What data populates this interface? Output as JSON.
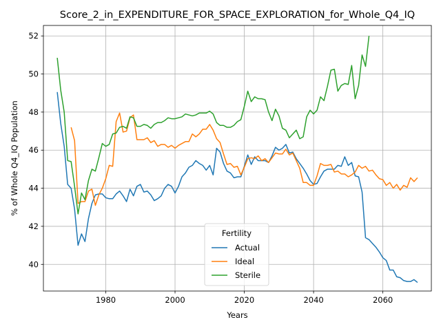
{
  "chart_data": {
    "type": "line",
    "title": "Score_2_in_EXPENDITURE_FOR_SPACE_EXPLORATION_for_Whole_Q4_IQ",
    "xlabel": "Years",
    "ylabel": "% of Whole Q4_IQ Population",
    "xlim": [
      1962,
      2074
    ],
    "ylim": [
      38.6,
      52.55
    ],
    "xticks": [
      1980,
      2000,
      2020,
      2040,
      2060
    ],
    "yticks": [
      40,
      42,
      44,
      46,
      48,
      50,
      52
    ],
    "grid": true,
    "legend": {
      "title": "Fertility",
      "placement": "lower center"
    },
    "series": [
      {
        "name": "Actual",
        "color": "#1f77b4",
        "points": [
          [
            1966,
            49.05
          ],
          [
            1967,
            47.4
          ],
          [
            1968,
            46.2
          ],
          [
            1969,
            44.2
          ],
          [
            1970,
            44.0
          ],
          [
            1971,
            42.9
          ],
          [
            1972,
            41.0
          ],
          [
            1973,
            41.6
          ],
          [
            1974,
            41.2
          ],
          [
            1975,
            42.4
          ],
          [
            1976,
            43.2
          ],
          [
            1977,
            43.65
          ],
          [
            1978,
            43.7
          ],
          [
            1979,
            43.7
          ],
          [
            1980,
            43.5
          ],
          [
            1981,
            43.45
          ],
          [
            1982,
            43.45
          ],
          [
            1983,
            43.7
          ],
          [
            1984,
            43.85
          ],
          [
            1985,
            43.6
          ],
          [
            1986,
            43.3
          ],
          [
            1987,
            43.95
          ],
          [
            1988,
            43.6
          ],
          [
            1989,
            44.1
          ],
          [
            1990,
            44.2
          ],
          [
            1991,
            43.8
          ],
          [
            1992,
            43.85
          ],
          [
            1993,
            43.65
          ],
          [
            1994,
            43.35
          ],
          [
            1995,
            43.45
          ],
          [
            1996,
            43.6
          ],
          [
            1997,
            44.0
          ],
          [
            1998,
            44.2
          ],
          [
            1999,
            44.1
          ],
          [
            2000,
            43.75
          ],
          [
            2001,
            44.1
          ],
          [
            2002,
            44.6
          ],
          [
            2003,
            44.8
          ],
          [
            2004,
            45.1
          ],
          [
            2005,
            45.2
          ],
          [
            2006,
            45.45
          ],
          [
            2007,
            45.3
          ],
          [
            2008,
            45.2
          ],
          [
            2009,
            44.95
          ],
          [
            2010,
            45.2
          ],
          [
            2011,
            44.7
          ],
          [
            2012,
            46.1
          ],
          [
            2013,
            45.9
          ],
          [
            2014,
            45.3
          ],
          [
            2015,
            44.9
          ],
          [
            2016,
            44.8
          ],
          [
            2017,
            44.55
          ],
          [
            2018,
            44.6
          ],
          [
            2019,
            44.6
          ],
          [
            2020,
            45.15
          ],
          [
            2021,
            45.75
          ],
          [
            2022,
            45.25
          ],
          [
            2023,
            45.65
          ],
          [
            2024,
            45.45
          ],
          [
            2025,
            45.45
          ],
          [
            2026,
            45.45
          ],
          [
            2027,
            45.35
          ],
          [
            2028,
            45.7
          ],
          [
            2029,
            46.15
          ],
          [
            2030,
            46.0
          ],
          [
            2031,
            46.1
          ],
          [
            2032,
            46.3
          ],
          [
            2033,
            45.85
          ],
          [
            2034,
            45.9
          ],
          [
            2035,
            45.55
          ],
          [
            2036,
            45.3
          ],
          [
            2037,
            45.05
          ],
          [
            2038,
            44.75
          ],
          [
            2039,
            44.4
          ],
          [
            2040,
            44.2
          ],
          [
            2041,
            44.25
          ],
          [
            2042,
            44.6
          ],
          [
            2043,
            44.9
          ],
          [
            2044,
            45.0
          ],
          [
            2045,
            45.0
          ],
          [
            2046,
            45.0
          ],
          [
            2047,
            45.2
          ],
          [
            2048,
            45.15
          ],
          [
            2049,
            45.65
          ],
          [
            2050,
            45.2
          ],
          [
            2051,
            45.35
          ],
          [
            2052,
            44.65
          ],
          [
            2053,
            44.6
          ],
          [
            2054,
            43.8
          ],
          [
            2055,
            41.4
          ],
          [
            2056,
            41.3
          ],
          [
            2057,
            41.1
          ],
          [
            2058,
            40.9
          ],
          [
            2059,
            40.65
          ],
          [
            2060,
            40.35
          ],
          [
            2061,
            40.2
          ],
          [
            2062,
            39.7
          ],
          [
            2063,
            39.7
          ],
          [
            2064,
            39.35
          ],
          [
            2065,
            39.3
          ],
          [
            2066,
            39.15
          ],
          [
            2067,
            39.1
          ],
          [
            2068,
            39.1
          ],
          [
            2069,
            39.2
          ],
          [
            2070,
            39.05
          ]
        ]
      },
      {
        "name": "Ideal",
        "color": "#ff7f0e",
        "points": [
          [
            1970,
            47.2
          ],
          [
            1971,
            46.5
          ],
          [
            1972,
            43.2
          ],
          [
            1973,
            43.3
          ],
          [
            1974,
            43.3
          ],
          [
            1975,
            43.85
          ],
          [
            1976,
            43.95
          ],
          [
            1977,
            43.1
          ],
          [
            1978,
            43.65
          ],
          [
            1979,
            44.0
          ],
          [
            1980,
            44.5
          ],
          [
            1981,
            45.2
          ],
          [
            1982,
            45.15
          ],
          [
            1983,
            47.5
          ],
          [
            1984,
            47.95
          ],
          [
            1985,
            46.95
          ],
          [
            1986,
            47.0
          ],
          [
            1987,
            47.7
          ],
          [
            1988,
            47.85
          ],
          [
            1989,
            46.55
          ],
          [
            1990,
            46.55
          ],
          [
            1991,
            46.55
          ],
          [
            1992,
            46.65
          ],
          [
            1993,
            46.4
          ],
          [
            1994,
            46.5
          ],
          [
            1995,
            46.2
          ],
          [
            1996,
            46.3
          ],
          [
            1997,
            46.3
          ],
          [
            1998,
            46.15
          ],
          [
            1999,
            46.25
          ],
          [
            2000,
            46.1
          ],
          [
            2001,
            46.25
          ],
          [
            2002,
            46.35
          ],
          [
            2003,
            46.45
          ],
          [
            2004,
            46.45
          ],
          [
            2005,
            46.85
          ],
          [
            2006,
            46.7
          ],
          [
            2007,
            46.85
          ],
          [
            2008,
            47.1
          ],
          [
            2009,
            47.1
          ],
          [
            2010,
            47.35
          ],
          [
            2011,
            47.05
          ],
          [
            2012,
            46.6
          ],
          [
            2013,
            46.4
          ],
          [
            2014,
            45.8
          ],
          [
            2015,
            45.25
          ],
          [
            2016,
            45.3
          ],
          [
            2017,
            45.1
          ],
          [
            2018,
            45.15
          ],
          [
            2019,
            44.7
          ],
          [
            2020,
            45.1
          ],
          [
            2021,
            45.55
          ],
          [
            2022,
            45.6
          ],
          [
            2023,
            45.55
          ],
          [
            2024,
            45.7
          ],
          [
            2025,
            45.45
          ],
          [
            2026,
            45.55
          ],
          [
            2027,
            45.35
          ],
          [
            2028,
            45.6
          ],
          [
            2029,
            45.85
          ],
          [
            2030,
            45.8
          ],
          [
            2031,
            45.8
          ],
          [
            2032,
            46.05
          ],
          [
            2033,
            45.75
          ],
          [
            2034,
            45.85
          ],
          [
            2035,
            45.45
          ],
          [
            2036,
            45.05
          ],
          [
            2037,
            44.3
          ],
          [
            2038,
            44.3
          ],
          [
            2039,
            44.15
          ],
          [
            2040,
            44.15
          ],
          [
            2041,
            44.65
          ],
          [
            2042,
            45.3
          ],
          [
            2043,
            45.2
          ],
          [
            2044,
            45.2
          ],
          [
            2045,
            45.25
          ],
          [
            2046,
            44.85
          ],
          [
            2047,
            44.9
          ],
          [
            2048,
            44.75
          ],
          [
            2049,
            44.75
          ],
          [
            2050,
            44.6
          ],
          [
            2051,
            44.7
          ],
          [
            2052,
            44.85
          ],
          [
            2053,
            45.2
          ],
          [
            2054,
            45.05
          ],
          [
            2055,
            45.15
          ],
          [
            2056,
            44.9
          ],
          [
            2057,
            44.95
          ],
          [
            2058,
            44.7
          ],
          [
            2059,
            44.5
          ],
          [
            2060,
            44.45
          ],
          [
            2061,
            44.15
          ],
          [
            2062,
            44.3
          ],
          [
            2063,
            44.0
          ],
          [
            2064,
            44.2
          ],
          [
            2065,
            43.9
          ],
          [
            2066,
            44.15
          ],
          [
            2067,
            44.05
          ],
          [
            2068,
            44.55
          ],
          [
            2069,
            44.35
          ],
          [
            2070,
            44.55
          ]
        ]
      },
      {
        "name": "Sterile",
        "color": "#2ca02c",
        "points": [
          [
            1966,
            50.85
          ],
          [
            1967,
            49.15
          ],
          [
            1968,
            48.0
          ],
          [
            1969,
            45.45
          ],
          [
            1970,
            45.4
          ],
          [
            1971,
            44.1
          ],
          [
            1972,
            42.65
          ],
          [
            1973,
            43.75
          ],
          [
            1974,
            43.4
          ],
          [
            1975,
            44.4
          ],
          [
            1976,
            45.0
          ],
          [
            1977,
            44.9
          ],
          [
            1978,
            45.6
          ],
          [
            1979,
            46.35
          ],
          [
            1980,
            46.2
          ],
          [
            1981,
            46.3
          ],
          [
            1982,
            46.85
          ],
          [
            1983,
            46.9
          ],
          [
            1984,
            47.2
          ],
          [
            1985,
            47.25
          ],
          [
            1986,
            47.15
          ],
          [
            1987,
            47.75
          ],
          [
            1988,
            47.7
          ],
          [
            1989,
            47.25
          ],
          [
            1990,
            47.25
          ],
          [
            1991,
            47.35
          ],
          [
            1992,
            47.3
          ],
          [
            1993,
            47.15
          ],
          [
            1994,
            47.35
          ],
          [
            1995,
            47.45
          ],
          [
            1996,
            47.45
          ],
          [
            1997,
            47.55
          ],
          [
            1998,
            47.7
          ],
          [
            1999,
            47.65
          ],
          [
            2000,
            47.65
          ],
          [
            2001,
            47.7
          ],
          [
            2002,
            47.75
          ],
          [
            2003,
            47.9
          ],
          [
            2004,
            47.85
          ],
          [
            2005,
            47.8
          ],
          [
            2006,
            47.85
          ],
          [
            2007,
            47.95
          ],
          [
            2008,
            47.95
          ],
          [
            2009,
            47.95
          ],
          [
            2010,
            48.05
          ],
          [
            2011,
            47.9
          ],
          [
            2012,
            47.45
          ],
          [
            2013,
            47.3
          ],
          [
            2014,
            47.3
          ],
          [
            2015,
            47.2
          ],
          [
            2016,
            47.2
          ],
          [
            2017,
            47.3
          ],
          [
            2018,
            47.5
          ],
          [
            2019,
            47.6
          ],
          [
            2020,
            48.3
          ],
          [
            2021,
            49.1
          ],
          [
            2022,
            48.55
          ],
          [
            2023,
            48.8
          ],
          [
            2024,
            48.7
          ],
          [
            2025,
            48.7
          ],
          [
            2026,
            48.65
          ],
          [
            2027,
            48.0
          ],
          [
            2028,
            47.55
          ],
          [
            2029,
            48.15
          ],
          [
            2030,
            47.8
          ],
          [
            2031,
            47.15
          ],
          [
            2032,
            47.05
          ],
          [
            2033,
            46.65
          ],
          [
            2034,
            46.85
          ],
          [
            2035,
            47.05
          ],
          [
            2036,
            46.6
          ],
          [
            2037,
            46.7
          ],
          [
            2038,
            47.75
          ],
          [
            2039,
            48.1
          ],
          [
            2040,
            47.9
          ],
          [
            2041,
            48.1
          ],
          [
            2042,
            48.8
          ],
          [
            2043,
            48.6
          ],
          [
            2044,
            49.35
          ],
          [
            2045,
            50.2
          ],
          [
            2046,
            50.25
          ],
          [
            2047,
            49.1
          ],
          [
            2048,
            49.4
          ],
          [
            2049,
            49.5
          ],
          [
            2050,
            49.45
          ],
          [
            2051,
            50.45
          ],
          [
            2052,
            48.7
          ],
          [
            2053,
            49.4
          ],
          [
            2054,
            51.0
          ],
          [
            2055,
            50.4
          ],
          [
            2056,
            52.0
          ]
        ]
      }
    ]
  }
}
